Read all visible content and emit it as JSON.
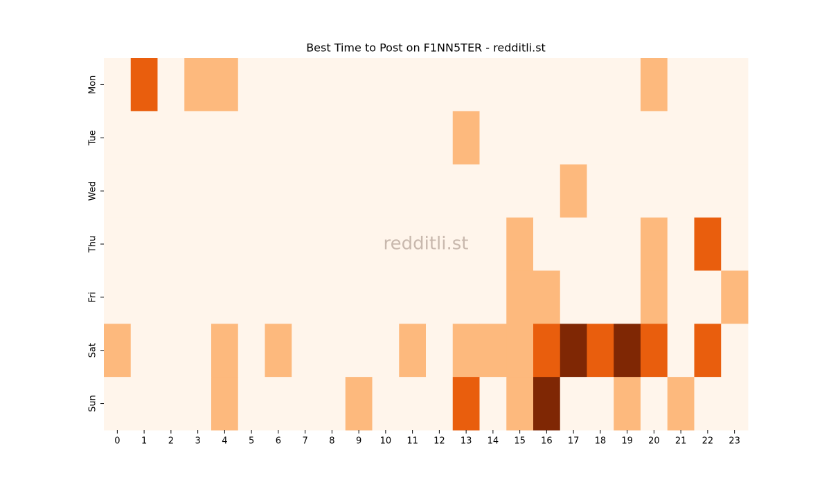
{
  "chart_data": {
    "type": "heatmap",
    "title": "Best Time to Post on F1NN5TER - redditli.st",
    "annotation": "redditli.st",
    "x_categories": [
      0,
      1,
      2,
      3,
      4,
      5,
      6,
      7,
      8,
      9,
      10,
      11,
      12,
      13,
      14,
      15,
      16,
      17,
      18,
      19,
      20,
      21,
      22,
      23
    ],
    "y_categories": [
      "Mon",
      "Tue",
      "Wed",
      "Thu",
      "Fri",
      "Sat",
      "Sun"
    ],
    "values": [
      [
        0,
        2,
        0,
        1,
        1,
        0,
        0,
        0,
        0,
        0,
        0,
        0,
        0,
        0,
        0,
        0,
        0,
        0,
        0,
        0,
        1,
        0,
        0,
        0
      ],
      [
        0,
        0,
        0,
        0,
        0,
        0,
        0,
        0,
        0,
        0,
        0,
        0,
        0,
        1,
        0,
        0,
        0,
        0,
        0,
        0,
        0,
        0,
        0,
        0
      ],
      [
        0,
        0,
        0,
        0,
        0,
        0,
        0,
        0,
        0,
        0,
        0,
        0,
        0,
        0,
        0,
        0,
        0,
        1,
        0,
        0,
        0,
        0,
        0,
        0
      ],
      [
        0,
        0,
        0,
        0,
        0,
        0,
        0,
        0,
        0,
        0,
        0,
        0,
        0,
        0,
        0,
        1,
        0,
        0,
        0,
        0,
        1,
        0,
        2,
        0
      ],
      [
        0,
        0,
        0,
        0,
        0,
        0,
        0,
        0,
        0,
        0,
        0,
        0,
        0,
        0,
        0,
        1,
        1,
        0,
        0,
        0,
        1,
        0,
        0,
        1
      ],
      [
        1,
        0,
        0,
        0,
        1,
        0,
        1,
        0,
        0,
        0,
        0,
        1,
        0,
        1,
        1,
        1,
        2,
        3,
        2,
        3,
        2,
        0,
        2,
        0
      ],
      [
        0,
        0,
        0,
        0,
        1,
        0,
        0,
        0,
        0,
        1,
        0,
        0,
        0,
        2,
        0,
        1,
        3,
        0,
        0,
        1,
        0,
        1,
        0,
        0
      ]
    ],
    "colors": [
      "#fff5eb",
      "#fdb97d",
      "#e95e0d",
      "#7f2704"
    ]
  }
}
